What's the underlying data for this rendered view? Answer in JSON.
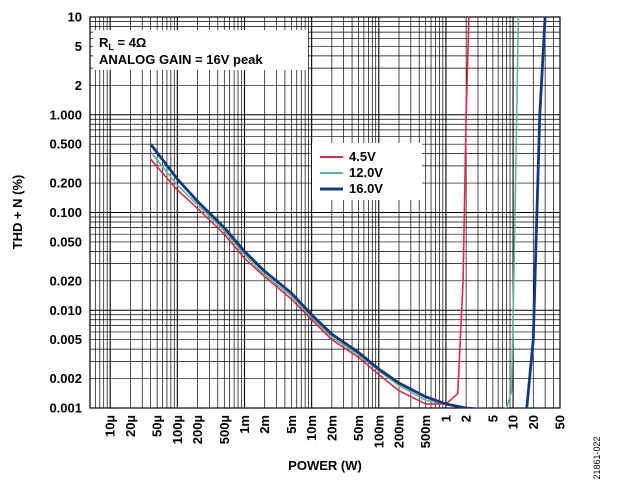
{
  "chart_data": {
    "type": "line",
    "xlabel": "POWER (W)",
    "ylabel": "THD + N (%)",
    "x_scale": "log",
    "y_scale": "log",
    "xlim": [
      5e-06,
      50
    ],
    "ylim": [
      0.001,
      10
    ],
    "grid": true,
    "legend_placement": "center",
    "x_tick_values": [
      1e-05,
      2e-05,
      5e-05,
      0.0001,
      0.0002,
      0.0005,
      0.001,
      0.002,
      0.005,
      0.01,
      0.02,
      0.05,
      0.1,
      0.2,
      0.5,
      1,
      2,
      5,
      10,
      20,
      50
    ],
    "x_tick_labels": [
      "10µ",
      "20µ",
      "50µ",
      "100µ",
      "200µ",
      "500µ",
      "1m",
      "2m",
      "5m",
      "10m",
      "20m",
      "50m",
      "100m",
      "200m",
      "500m",
      "1",
      "2",
      "5",
      "10",
      "20",
      "50"
    ],
    "y_tick_values": [
      10,
      5,
      2,
      1,
      0.5,
      0.2,
      0.1,
      0.05,
      0.02,
      0.01,
      0.005,
      0.002,
      0.001
    ],
    "y_tick_labels": [
      "10",
      "5",
      "2",
      "1.000",
      "0.500",
      "0.200",
      "0.100",
      "0.050",
      "0.020",
      "0.010",
      "0.005",
      "0.002",
      "0.001"
    ],
    "annotations": [
      {
        "text_main": "R",
        "text_sub": "L",
        "text_rest": " = 4Ω"
      },
      {
        "text": "ANALOG GAIN = 16V peak"
      }
    ],
    "series": [
      {
        "name": "4.5V",
        "color": "#e0294a",
        "x": [
          4e-05,
          0.0001,
          0.0002,
          0.0005,
          0.001,
          0.002,
          0.005,
          0.01,
          0.02,
          0.05,
          0.1,
          0.2,
          0.5,
          1.0,
          1.5,
          1.8,
          2.0,
          2.2
        ],
        "y": [
          0.35,
          0.17,
          0.11,
          0.06,
          0.034,
          0.022,
          0.013,
          0.008,
          0.005,
          0.0033,
          0.0022,
          0.0015,
          0.0011,
          0.0011,
          0.0014,
          0.02,
          1.0,
          10
        ]
      },
      {
        "name": "12.0V",
        "color": "#5cb893",
        "x": [
          4e-05,
          0.0001,
          0.0002,
          0.0005,
          0.001,
          0.002,
          0.005,
          0.01,
          0.02,
          0.05,
          0.1,
          0.2,
          0.5,
          1,
          2,
          5,
          8,
          9.5,
          10.5,
          12
        ],
        "y": [
          0.42,
          0.19,
          0.12,
          0.065,
          0.037,
          0.023,
          0.014,
          0.0085,
          0.0053,
          0.0035,
          0.0024,
          0.0017,
          0.0012,
          0.0011,
          0.001,
          0.0009,
          0.001,
          0.0015,
          0.05,
          10
        ]
      },
      {
        "name": "16.0V",
        "color": "#14387f",
        "x": [
          4e-05,
          0.0001,
          0.0002,
          0.0005,
          0.001,
          0.002,
          0.005,
          0.01,
          0.02,
          0.05,
          0.1,
          0.2,
          0.5,
          1,
          2,
          5,
          10,
          14,
          16,
          20,
          22,
          25,
          30
        ],
        "y": [
          0.5,
          0.22,
          0.13,
          0.07,
          0.04,
          0.025,
          0.015,
          0.009,
          0.0057,
          0.0037,
          0.0025,
          0.0018,
          0.0013,
          0.0011,
          0.001,
          0.00095,
          0.00085,
          0.0008,
          0.001,
          0.005,
          0.05,
          1.0,
          10
        ]
      }
    ]
  },
  "figure_id": "21861-022"
}
